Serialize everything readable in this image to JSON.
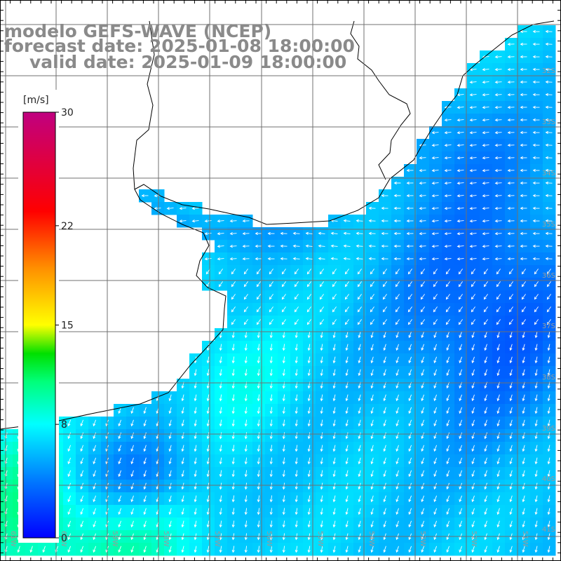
{
  "title": {
    "line1": "modelo GEFS-WAVE (NCEP)",
    "line2": "forecast date: 2025-01-08 18:00:00",
    "line3": "valid date: 2025-01-09 18:00:00"
  },
  "colorbar": {
    "unit": "[m/s]",
    "min": 0,
    "max": 30,
    "ticks": [
      {
        "value": 30,
        "label": "30"
      },
      {
        "value": 22,
        "label": "22"
      },
      {
        "value": 15,
        "label": "15"
      },
      {
        "value": 8,
        "label": "8"
      },
      {
        "value": 0,
        "label": "0"
      }
    ],
    "stops": [
      {
        "value": 0,
        "color": "#0000ff"
      },
      {
        "value": 4,
        "color": "#0078ff"
      },
      {
        "value": 8,
        "color": "#00ffff"
      },
      {
        "value": 11,
        "color": "#00ff7a"
      },
      {
        "value": 13,
        "color": "#00e000"
      },
      {
        "value": 15,
        "color": "#ffff00"
      },
      {
        "value": 19,
        "color": "#ff9000"
      },
      {
        "value": 23,
        "color": "#ff0000"
      },
      {
        "value": 30,
        "color": "#c00080"
      }
    ]
  },
  "map": {
    "variable": "wind speed",
    "lon_range": [
      -61.5,
      -50
    ],
    "lat_range": [
      -41.3,
      -31
    ],
    "lat_labels": [
      "32S",
      "33S",
      "34S",
      "35S",
      "36S",
      "37S",
      "38S",
      "39S",
      "40S",
      "41S"
    ],
    "lon_labels": [
      "61W",
      "60W",
      "59W",
      "58W",
      "57W",
      "56W",
      "55W",
      "54W",
      "53W",
      "52W",
      "51W"
    ],
    "colors": {
      "land": "#ffffff",
      "coastline": "#000000",
      "grid": "#707070",
      "arrows": "#ffffff"
    }
  }
}
